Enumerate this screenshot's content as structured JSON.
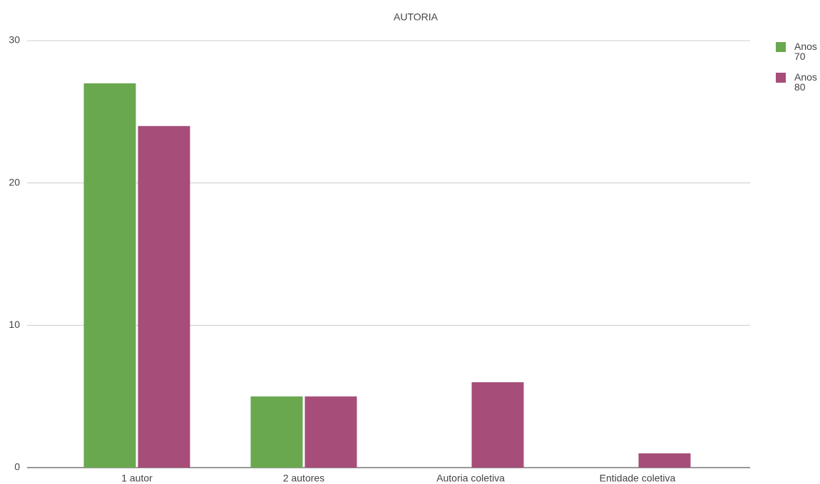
{
  "chart_data": {
    "type": "bar",
    "title": "AUTORIA",
    "categories": [
      "1 autor",
      "2 autores",
      "Autoria coletiva",
      "Entidade coletiva"
    ],
    "series": [
      {
        "name": "Anos 70",
        "color": "#6aa84f",
        "values": [
          27,
          5,
          0,
          0
        ]
      },
      {
        "name": "Anos 80",
        "color": "#a64d79",
        "values": [
          24,
          5,
          6,
          1
        ]
      }
    ],
    "ylim": [
      0,
      30
    ],
    "yticks": [
      0,
      10,
      20,
      30
    ],
    "grid": true,
    "legend": "right"
  }
}
